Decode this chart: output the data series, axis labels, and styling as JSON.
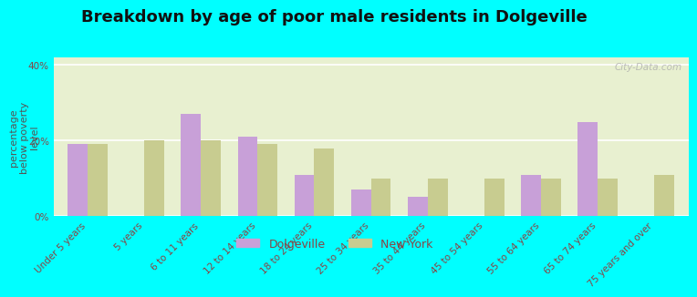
{
  "title": "Breakdown by age of poor male residents in Dolgeville",
  "ylabel": "percentage\nbelow poverty\nlevel",
  "categories": [
    "Under 5 years",
    "5 years",
    "6 to 11 years",
    "12 to 14 years",
    "18 to 24 years",
    "25 to 34 years",
    "35 to 44 years",
    "45 to 54 years",
    "55 to 64 years",
    "65 to 74 years",
    "75 years and over"
  ],
  "dolgeville": [
    19,
    0,
    27,
    21,
    11,
    7,
    5,
    0,
    11,
    25,
    0
  ],
  "new_york": [
    19,
    20,
    20,
    19,
    18,
    10,
    10,
    10,
    10,
    10,
    11
  ],
  "bar_color_dolgeville": "#c8a0d8",
  "bar_color_new_york": "#c8cc90",
  "background_color": "#e8f0d0",
  "outer_background": "#00ffff",
  "grid_color": "#ffffff",
  "title_color": "#111111",
  "axis_label_color": "#555555",
  "tick_label_color": "#884444",
  "ylim": [
    0,
    42
  ],
  "ytick_labels": [
    "0%",
    "20%",
    "40%"
  ],
  "bar_width": 0.35,
  "title_fontsize": 13,
  "ylabel_fontsize": 8,
  "tick_fontsize": 7.5,
  "legend_fontsize": 9,
  "watermark": "City-Data.com"
}
